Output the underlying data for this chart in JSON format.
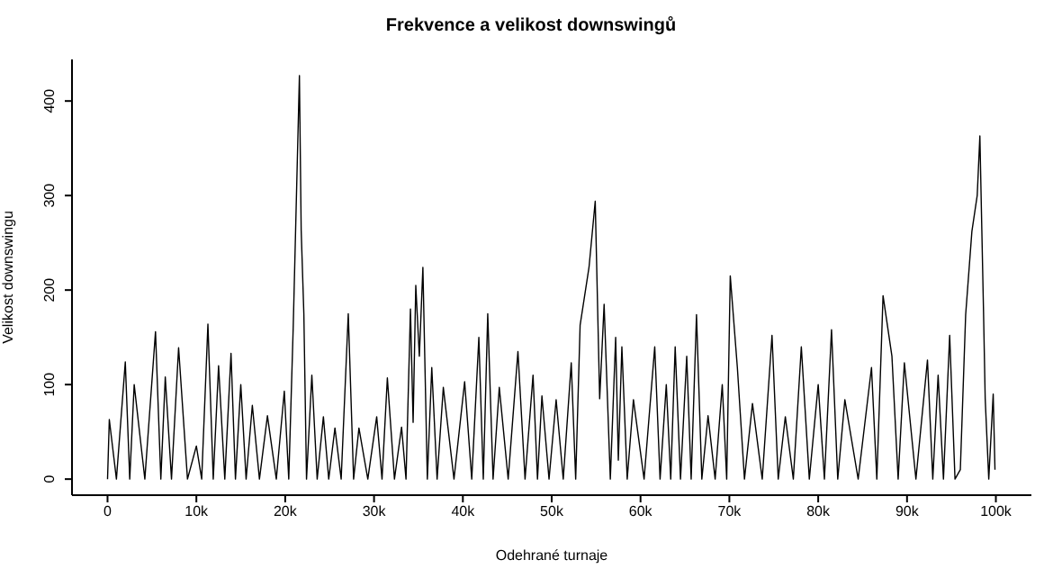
{
  "chart_data": {
    "type": "line",
    "title": "Frekvence a velikost downswingů",
    "xlabel": "Odehrané turnaje",
    "ylabel": "Velikost downswingu",
    "color": "#000000",
    "marker": "none",
    "line_style": "solid",
    "grid": false,
    "legend": false,
    "x": [
      0,
      200,
      1000,
      2000,
      2500,
      3000,
      4200,
      5400,
      6000,
      6500,
      7200,
      8000,
      9000,
      10000,
      10600,
      11300,
      11900,
      12500,
      13200,
      13900,
      14400,
      15000,
      15600,
      16300,
      17100,
      18000,
      19000,
      19900,
      20400,
      20900,
      21600,
      21800,
      22100,
      22400,
      23000,
      23600,
      24300,
      24900,
      25600,
      26300,
      27100,
      27700,
      28300,
      29300,
      30300,
      30900,
      31500,
      32300,
      33100,
      33600,
      34100,
      34400,
      34700,
      35100,
      35500,
      36000,
      36500,
      37100,
      37800,
      39000,
      40200,
      41000,
      41800,
      42300,
      42800,
      43400,
      44100,
      45100,
      46200,
      47000,
      47900,
      48400,
      48900,
      49700,
      50500,
      51300,
      52200,
      52700,
      53200,
      54200,
      54900,
      55400,
      55900,
      56600,
      57200,
      57500,
      57900,
      58500,
      59200,
      60400,
      61600,
      62200,
      62900,
      63400,
      63900,
      64500,
      65200,
      65700,
      66300,
      66900,
      67600,
      68400,
      69200,
      69700,
      70100,
      70900,
      71700,
      72600,
      73700,
      74800,
      75500,
      76300,
      77200,
      78100,
      79000,
      80000,
      80700,
      81500,
      82200,
      83000,
      84500,
      86000,
      86600,
      87300,
      88300,
      89000,
      89700,
      91000,
      92300,
      92900,
      93500,
      94100,
      94800,
      95400,
      96000,
      96600,
      97300,
      97900,
      98200,
      98600,
      98800,
      99200,
      99700,
      99900
    ],
    "values": [
      0,
      63,
      0,
      124,
      0,
      100,
      0,
      156,
      0,
      108,
      0,
      139,
      0,
      35,
      0,
      164,
      0,
      120,
      0,
      133,
      0,
      100,
      0,
      78,
      0,
      67,
      0,
      93,
      0,
      160,
      427,
      263,
      175,
      0,
      110,
      0,
      66,
      0,
      54,
      0,
      175,
      0,
      54,
      0,
      66,
      0,
      107,
      0,
      55,
      0,
      180,
      60,
      205,
      130,
      224,
      0,
      118,
      0,
      97,
      0,
      103,
      0,
      150,
      0,
      175,
      0,
      97,
      0,
      135,
      0,
      110,
      0,
      88,
      0,
      84,
      0,
      123,
      0,
      163,
      224,
      294,
      85,
      185,
      0,
      150,
      20,
      140,
      0,
      84,
      0,
      140,
      0,
      100,
      0,
      140,
      0,
      130,
      0,
      174,
      0,
      67,
      0,
      100,
      0,
      215,
      118,
      0,
      80,
      0,
      152,
      0,
      66,
      0,
      140,
      0,
      100,
      0,
      158,
      0,
      84,
      0,
      118,
      0,
      194,
      130,
      0,
      123,
      0,
      126,
      0,
      110,
      0,
      152,
      0,
      10,
      174,
      262,
      300,
      363,
      182,
      85,
      0,
      90,
      10
    ],
    "xlim": [
      -4000,
      104000
    ],
    "xticks": [
      {
        "value": 0,
        "label": "0"
      },
      {
        "value": 10000,
        "label": "10k"
      },
      {
        "value": 20000,
        "label": "20k"
      },
      {
        "value": 30000,
        "label": "30k"
      },
      {
        "value": 40000,
        "label": "40k"
      },
      {
        "value": 50000,
        "label": "50k"
      },
      {
        "value": 60000,
        "label": "60k"
      },
      {
        "value": 70000,
        "label": "70k"
      },
      {
        "value": 80000,
        "label": "80k"
      },
      {
        "value": 90000,
        "label": "90k"
      },
      {
        "value": 100000,
        "label": "100k"
      }
    ],
    "ylim": [
      -17,
      444
    ],
    "yticks": [
      0,
      100,
      200,
      300,
      400
    ]
  }
}
